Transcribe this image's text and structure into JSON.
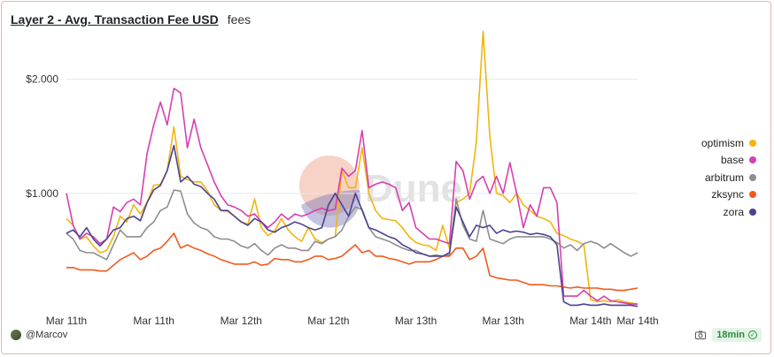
{
  "header": {
    "title": "Layer 2 - Avg. Transaction Fee USD",
    "subtitle": "fees"
  },
  "watermark": "Dune",
  "footer": {
    "author": "@Marcov",
    "refresh": "18min",
    "camera_icon": "camera-icon",
    "check_icon": "check-circle-icon"
  },
  "colors": {
    "optimism": "#f2b50f",
    "base": "#d63fb1",
    "arbitrum": "#8e8e8e",
    "zksync": "#f05a1e",
    "zora": "#4b438f",
    "grid": "#e5e7eb"
  },
  "chart_data": {
    "type": "line",
    "title": "Layer 2 - Avg. Transaction Fee USD",
    "xlabel": "",
    "ylabel": "",
    "ylim": [
      0,
      2.4
    ],
    "y_ticks": [
      {
        "value": 1.0,
        "label": "$1.000"
      },
      {
        "value": 2.0,
        "label": "$2.000"
      }
    ],
    "x_ticks": [
      {
        "index": 0,
        "label": "Mar 11th"
      },
      {
        "index": 13,
        "label": "Mar 11th"
      },
      {
        "index": 26,
        "label": "Mar 12th"
      },
      {
        "index": 39,
        "label": "Mar 12th"
      },
      {
        "index": 52,
        "label": "Mar 13th"
      },
      {
        "index": 65,
        "label": "Mar 13th"
      },
      {
        "index": 78,
        "label": "Mar 14th"
      },
      {
        "index": 85,
        "label": "Mar 14th"
      }
    ],
    "grid": true,
    "legend_position": "right",
    "series": [
      {
        "name": "optimism",
        "values": [
          0.78,
          0.72,
          0.6,
          0.62,
          0.54,
          0.48,
          0.5,
          0.62,
          0.8,
          0.75,
          0.9,
          0.82,
          0.92,
          1.07,
          1.08,
          1.2,
          1.58,
          1.15,
          1.12,
          1.1,
          1.1,
          1.02,
          0.9,
          0.85,
          0.84,
          0.8,
          0.75,
          0.73,
          0.95,
          0.7,
          0.63,
          0.67,
          0.78,
          0.68,
          0.62,
          0.58,
          0.7,
          0.6,
          0.57,
          0.6,
          0.62,
          1.2,
          1.05,
          1.05,
          1.4,
          1.0,
          0.85,
          0.78,
          0.77,
          0.76,
          0.7,
          0.62,
          0.57,
          0.55,
          0.54,
          0.5,
          0.72,
          0.52,
          0.92,
          0.95,
          1.0,
          1.45,
          2.42,
          1.5,
          1.0,
          0.98,
          0.92,
          1.0,
          0.9,
          0.85,
          0.8,
          0.78,
          0.75,
          0.65,
          0.63,
          0.6,
          0.58,
          0.55,
          0.07,
          0.05,
          0.06,
          0.05,
          0.07,
          0.05,
          0.04,
          0.03
        ]
      },
      {
        "name": "base",
        "values": [
          1.0,
          0.72,
          0.6,
          0.65,
          0.62,
          0.56,
          0.6,
          0.88,
          0.84,
          0.92,
          0.95,
          0.9,
          1.35,
          1.6,
          1.8,
          1.6,
          1.92,
          1.88,
          1.4,
          1.65,
          1.4,
          1.25,
          1.1,
          0.98,
          0.9,
          0.88,
          0.85,
          0.8,
          0.82,
          0.75,
          0.7,
          0.75,
          0.82,
          0.77,
          0.82,
          0.8,
          0.82,
          0.85,
          0.87,
          0.85,
          0.86,
          1.22,
          1.15,
          1.2,
          1.55,
          1.05,
          1.08,
          1.1,
          1.08,
          1.05,
          0.85,
          0.92,
          0.7,
          0.65,
          0.6,
          0.6,
          0.58,
          0.56,
          1.28,
          1.2,
          0.95,
          1.1,
          1.15,
          1.0,
          1.15,
          1.0,
          1.27,
          1.0,
          0.7,
          0.9,
          0.8,
          1.05,
          1.05,
          0.92,
          0.1,
          0.1,
          0.1,
          0.15,
          0.1,
          0.06,
          0.1,
          0.06,
          0.05,
          0.04,
          0.03,
          0.03
        ]
      },
      {
        "name": "arbitrum",
        "values": [
          0.65,
          0.6,
          0.5,
          0.48,
          0.48,
          0.45,
          0.42,
          0.55,
          0.68,
          0.62,
          0.62,
          0.62,
          0.7,
          0.75,
          0.85,
          0.88,
          1.03,
          1.02,
          0.82,
          0.74,
          0.7,
          0.68,
          0.62,
          0.6,
          0.6,
          0.58,
          0.54,
          0.52,
          0.56,
          0.5,
          0.46,
          0.52,
          0.55,
          0.52,
          0.52,
          0.5,
          0.5,
          0.58,
          0.56,
          0.6,
          0.62,
          0.68,
          0.8,
          0.88,
          0.86,
          0.7,
          0.62,
          0.6,
          0.58,
          0.55,
          0.52,
          0.5,
          0.5,
          0.47,
          0.45,
          0.46,
          0.45,
          0.46,
          0.95,
          0.72,
          0.6,
          0.58,
          0.85,
          0.6,
          0.58,
          0.56,
          0.6,
          0.62,
          0.62,
          0.62,
          0.62,
          0.62,
          0.6,
          0.57,
          0.52,
          0.55,
          0.5,
          0.56,
          0.58,
          0.56,
          0.52,
          0.56,
          0.52,
          0.48,
          0.45,
          0.48
        ]
      },
      {
        "name": "zksync",
        "values": [
          0.35,
          0.35,
          0.33,
          0.33,
          0.33,
          0.32,
          0.32,
          0.37,
          0.42,
          0.45,
          0.48,
          0.42,
          0.45,
          0.5,
          0.52,
          0.58,
          0.65,
          0.52,
          0.55,
          0.52,
          0.5,
          0.47,
          0.45,
          0.42,
          0.4,
          0.38,
          0.38,
          0.38,
          0.4,
          0.37,
          0.38,
          0.43,
          0.42,
          0.42,
          0.4,
          0.4,
          0.42,
          0.45,
          0.45,
          0.42,
          0.43,
          0.45,
          0.5,
          0.55,
          0.48,
          0.5,
          0.45,
          0.45,
          0.43,
          0.42,
          0.4,
          0.38,
          0.4,
          0.4,
          0.4,
          0.42,
          0.45,
          0.45,
          0.52,
          0.52,
          0.42,
          0.45,
          0.52,
          0.28,
          0.26,
          0.25,
          0.24,
          0.24,
          0.22,
          0.2,
          0.2,
          0.2,
          0.19,
          0.19,
          0.18,
          0.17,
          0.18,
          0.17,
          0.17,
          0.17,
          0.16,
          0.16,
          0.15,
          0.15,
          0.16,
          0.17
        ]
      },
      {
        "name": "zora",
        "values": [
          0.65,
          0.68,
          0.62,
          0.7,
          0.6,
          0.54,
          0.6,
          0.68,
          0.7,
          0.78,
          0.8,
          0.76,
          0.92,
          1.03,
          1.07,
          1.2,
          1.42,
          1.1,
          1.15,
          1.08,
          1.06,
          1.0,
          0.95,
          0.85,
          0.85,
          0.8,
          0.75,
          0.72,
          0.78,
          0.75,
          0.68,
          0.66,
          0.7,
          0.72,
          0.75,
          0.73,
          0.7,
          0.68,
          0.7,
          0.9,
          1.0,
          0.9,
          0.8,
          1.0,
          0.85,
          0.7,
          0.68,
          0.65,
          0.62,
          0.6,
          0.55,
          0.52,
          0.48,
          0.47,
          0.45,
          0.45,
          0.45,
          0.48,
          0.88,
          0.75,
          0.62,
          0.72,
          0.7,
          0.72,
          0.65,
          0.68,
          0.66,
          0.67,
          0.66,
          0.64,
          0.65,
          0.64,
          0.62,
          0.55,
          0.05,
          0.02,
          0.02,
          0.03,
          0.02,
          0.02,
          0.03,
          0.02,
          0.02,
          0.02,
          0.02,
          0.01
        ]
      }
    ]
  }
}
